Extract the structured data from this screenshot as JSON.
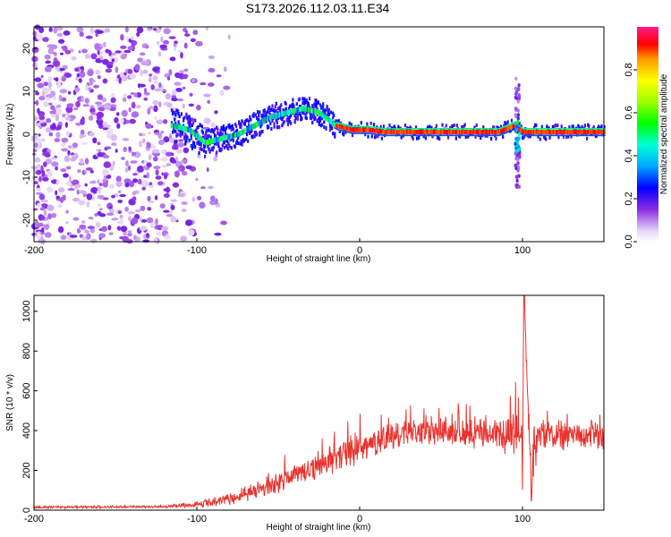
{
  "title": "S173.2026.112.03.11.E34",
  "chart_data": [
    {
      "type": "heatmap",
      "name": "spectrogram",
      "xlabel": "Height of straight line (km)",
      "ylabel": "Frequency (Hz)",
      "xlim": [
        -200,
        150
      ],
      "ylim": [
        -25,
        25
      ],
      "xticks": [
        -200,
        -100,
        0,
        100
      ],
      "yticks": [
        -20,
        -10,
        0,
        10,
        20
      ],
      "colorbar": {
        "label": "Normalized spectral amplitude",
        "range": [
          0,
          1
        ],
        "ticks": [
          0.0,
          0.2,
          0.4,
          0.6,
          0.8
        ]
      },
      "ridge": {
        "x": [
          -115,
          -105,
          -95,
          -85,
          -75,
          -65,
          -55,
          -45,
          -35,
          -25,
          -15,
          -5,
          5,
          15,
          25,
          50,
          85,
          95,
          100,
          110,
          150
        ],
        "y": [
          2,
          1,
          -2,
          -1,
          0,
          2,
          4,
          5,
          6,
          5,
          2,
          1,
          1,
          0.5,
          0.5,
          0.5,
          0.5,
          2,
          0.5,
          0.5,
          0.5
        ]
      }
    },
    {
      "type": "line",
      "name": "snr",
      "xlabel": "Height of straight line (km)",
      "ylabel": "SNR (10 * v/v)",
      "xlim": [
        -200,
        150
      ],
      "ylim": [
        0,
        1080
      ],
      "xticks": [
        -200,
        -100,
        0,
        100
      ],
      "yticks": [
        0,
        200,
        400,
        600,
        800,
        1000
      ],
      "color": "#e8332f",
      "envelope": {
        "x": [
          -200,
          -120,
          -100,
          -80,
          -60,
          -40,
          -20,
          0,
          20,
          40,
          60,
          80,
          95,
          100,
          101,
          105,
          110,
          130,
          150
        ],
        "base": [
          15,
          18,
          30,
          60,
          110,
          180,
          250,
          320,
          380,
          400,
          400,
          390,
          400,
          300,
          1080,
          200,
          380,
          380,
          380
        ],
        "spread": [
          10,
          10,
          25,
          50,
          70,
          90,
          110,
          110,
          110,
          100,
          110,
          110,
          200,
          300,
          0,
          300,
          120,
          110,
          110
        ]
      },
      "series": [
        {
          "name": "SNR"
        }
      ]
    }
  ]
}
